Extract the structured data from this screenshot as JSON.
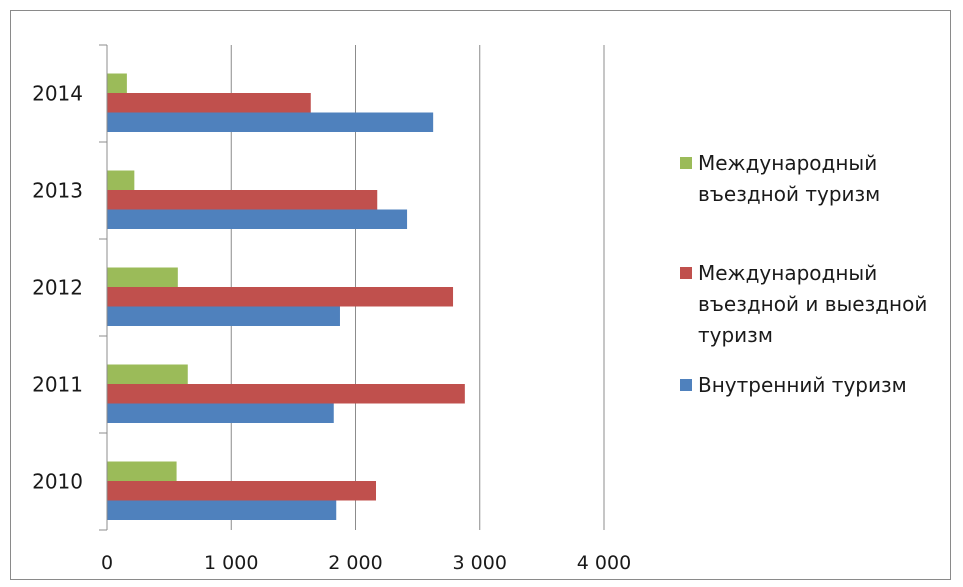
{
  "chart_data": {
    "type": "bar",
    "orientation": "horizontal",
    "categories": [
      "2010",
      "2011",
      "2012",
      "2013",
      "2014"
    ],
    "series": [
      {
        "name": "Международный въездной туризм",
        "color": "#9bbb59",
        "values": [
          560,
          650,
          570,
          220,
          160
        ]
      },
      {
        "name": "Международный въездной и выездной туризм",
        "color": "#c0504d",
        "values": [
          2165,
          2880,
          2785,
          2175,
          1640
        ]
      },
      {
        "name": "Внутренний туризм",
        "color": "#4f81bd",
        "values": [
          1845,
          1825,
          1875,
          2415,
          2625
        ]
      }
    ],
    "xlim": [
      0,
      4000
    ],
    "xticks": [
      0,
      1000,
      2000,
      3000,
      4000
    ],
    "xtick_labels": [
      "0",
      "1 000",
      "2 000",
      "3 000",
      "4 000"
    ],
    "grid": "vertical",
    "legend_position": "right"
  },
  "legend": {
    "inbound_line1": "Международный",
    "inbound_line2": "въездной туризм",
    "both_line1": "Международный",
    "both_line2": "въездной и выездной",
    "both_line3": "туризм",
    "domestic": "Внутренний туризм"
  }
}
